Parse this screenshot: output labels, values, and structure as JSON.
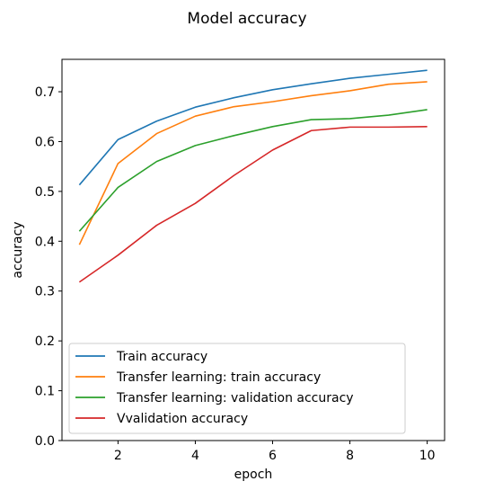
{
  "chart_data": {
    "type": "line",
    "title": "Model accuracy",
    "xlabel": "epoch",
    "ylabel": "accuracy",
    "xlim": [
      0.55,
      10.45
    ],
    "ylim": [
      0.0,
      0.765
    ],
    "xticks": [
      2,
      4,
      6,
      8,
      10
    ],
    "yticks": [
      0.0,
      0.1,
      0.2,
      0.3,
      0.4,
      0.5,
      0.6,
      0.7
    ],
    "ytick_labels": [
      "0.0",
      "0.1",
      "0.2",
      "0.3",
      "0.4",
      "0.5",
      "0.6",
      "0.7"
    ],
    "grid": false,
    "legend_position": "lower-left",
    "x": [
      1,
      2,
      3,
      4,
      5,
      6,
      7,
      8,
      9,
      10
    ],
    "series": [
      {
        "name": "Train accuracy",
        "color": "#1f77b4",
        "values": [
          0.513,
          0.604,
          0.641,
          0.669,
          0.688,
          0.704,
          0.716,
          0.727,
          0.735,
          0.743
        ]
      },
      {
        "name": "Transfer learning: train accuracy",
        "color": "#ff7f0e",
        "values": [
          0.393,
          0.556,
          0.616,
          0.651,
          0.67,
          0.68,
          0.692,
          0.702,
          0.715,
          0.72
        ]
      },
      {
        "name": "Transfer learning: validation accuracy",
        "color": "#2ca02c",
        "values": [
          0.42,
          0.508,
          0.56,
          0.592,
          0.612,
          0.63,
          0.644,
          0.646,
          0.653,
          0.664
        ]
      },
      {
        "name": "Vvalidation accuracy",
        "color": "#d62728",
        "values": [
          0.318,
          0.372,
          0.432,
          0.476,
          0.532,
          0.583,
          0.622,
          0.629,
          0.629,
          0.63
        ]
      }
    ]
  }
}
